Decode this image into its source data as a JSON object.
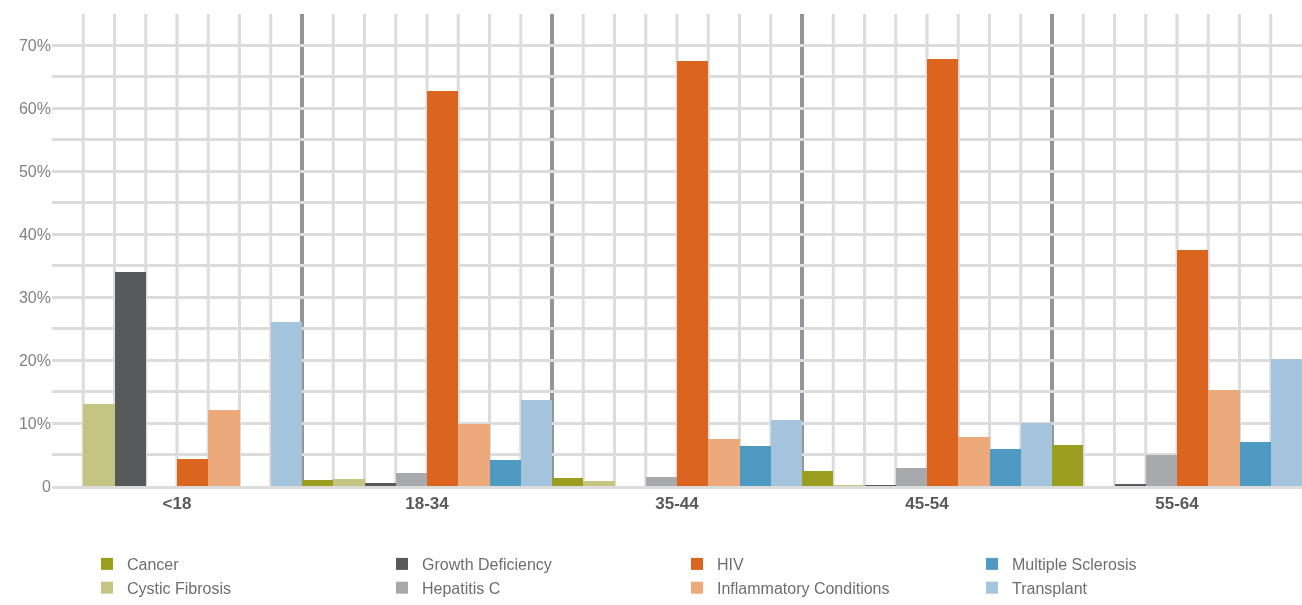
{
  "chart_data": {
    "type": "bar",
    "categories": [
      "<18",
      "18-34",
      "35-44",
      "45-54",
      "55-64"
    ],
    "series": [
      {
        "name": "Cancer",
        "color": "#9a9d1e",
        "values": [
          0,
          0.9,
          1.3,
          2.4,
          6.5
        ]
      },
      {
        "name": "Cystic Fibrosis",
        "color": "#c5c583",
        "values": [
          13,
          1.1,
          0.8,
          0.1,
          0
        ]
      },
      {
        "name": "Growth Deficiency",
        "color": "#58595b",
        "values": [
          34,
          0.5,
          0,
          0.1,
          0.3
        ]
      },
      {
        "name": "Hepatitis C",
        "color": "#a7a9ac",
        "values": [
          0,
          2.1,
          1.5,
          2.8,
          5
        ]
      },
      {
        "name": "HIV",
        "color": "#db651e",
        "values": [
          4.3,
          62.8,
          67.5,
          67.8,
          37.5
        ]
      },
      {
        "name": "Inflammatory Conditions",
        "color": "#eca97c",
        "values": [
          12.1,
          9.9,
          7.4,
          7.8,
          15.2
        ]
      },
      {
        "name": "Multiple Sclerosis",
        "color": "#4f9ac2",
        "values": [
          0,
          4.2,
          6.4,
          5.9,
          7
        ]
      },
      {
        "name": "Transplant",
        "color": "#a4c3dc",
        "values": [
          26,
          13.7,
          10.5,
          10,
          20.2
        ]
      }
    ],
    "ylim": [
      0,
      75
    ],
    "yticks": [
      {
        "value": 0,
        "label": "0"
      },
      {
        "value": 5,
        "label": null
      },
      {
        "value": 10,
        "label": "10%"
      },
      {
        "value": 15,
        "label": null
      },
      {
        "value": 20,
        "label": "20%"
      },
      {
        "value": 25,
        "label": null
      },
      {
        "value": 30,
        "label": "30%"
      },
      {
        "value": 35,
        "label": null
      },
      {
        "value": 40,
        "label": "40%"
      },
      {
        "value": 45,
        "label": null
      },
      {
        "value": 50,
        "label": "50%"
      },
      {
        "value": 55,
        "label": null
      },
      {
        "value": 60,
        "label": "60%"
      },
      {
        "value": 65,
        "label": null
      },
      {
        "value": 70,
        "label": "70%"
      }
    ],
    "grid": true,
    "legend": "bottom"
  }
}
